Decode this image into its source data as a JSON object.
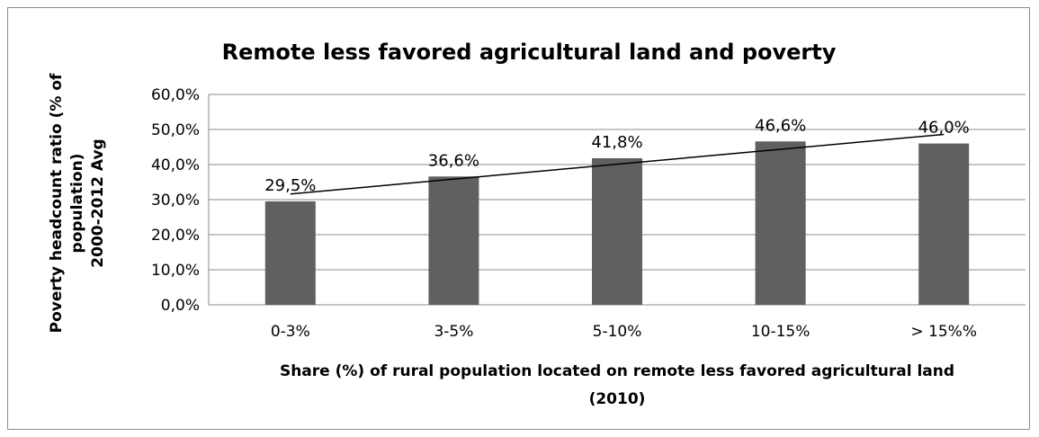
{
  "chart_data": {
    "type": "bar",
    "title": "Remote less favored agricultural land and poverty",
    "categories": [
      "0-3%",
      "3-5%",
      "5-10%",
      "10-15%",
      "> 15%%"
    ],
    "values": [
      29.5,
      36.6,
      41.8,
      46.6,
      46.0
    ],
    "data_labels": [
      "29,5%",
      "36,6%",
      "41,8%",
      "46,6%",
      "46,0%"
    ],
    "ylim": [
      0,
      60
    ],
    "y_ticks": [
      0,
      10,
      20,
      30,
      40,
      50,
      60
    ],
    "y_tick_labels": [
      "0,0%",
      "10,0%",
      "20,0%",
      "30,0%",
      "40,0%",
      "50,0%",
      "60,0%"
    ],
    "xlabel_lines": [
      "Share (%) of rural population located on remote less favored agricultural land",
      "(2010)"
    ],
    "ylabel_lines": [
      "Poverty headcount ratio (% of",
      "population)",
      "2000-2012 Avg"
    ],
    "trendline": {
      "type": "linear",
      "start": 31.6,
      "end": 48.6
    },
    "bar_color": "#606060",
    "grid": true,
    "legend": "none"
  }
}
